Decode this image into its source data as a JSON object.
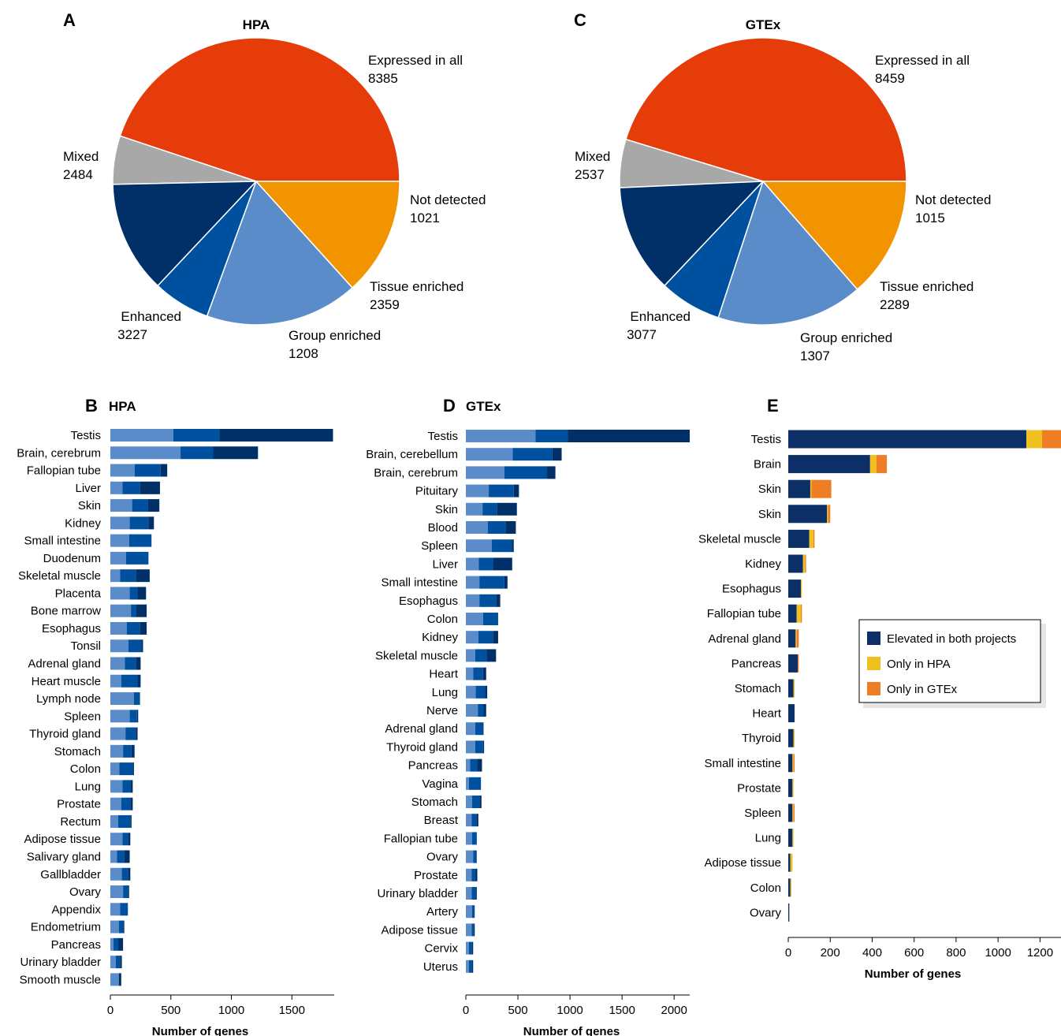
{
  "colors": {
    "expressed_in_all": "#e63c0a",
    "mixed": "#f29400",
    "not_detected": "#a8a8a8",
    "enhanced": "#5b8cca",
    "group_enriched": "#0050a0",
    "tissue_enriched": "#003067",
    "elevated_both": "#0b2f66",
    "only_hpa": "#f0c020",
    "only_gtex": "#ee7d23"
  },
  "chart_data": [
    {
      "panel": "A",
      "type": "pie",
      "title": "HPA",
      "slices": [
        {
          "name": "Expressed in all",
          "value": 8385
        },
        {
          "name": "Not detected",
          "value": 1021
        },
        {
          "name": "Tissue enriched",
          "value": 2359
        },
        {
          "name": "Group enriched",
          "value": 1208
        },
        {
          "name": "Enhanced",
          "value": 3227
        },
        {
          "name": "Mixed",
          "value": 2484
        }
      ]
    },
    {
      "panel": "C",
      "type": "pie",
      "title": "GTEx",
      "slices": [
        {
          "name": "Expressed in all",
          "value": 8459
        },
        {
          "name": "Not detected",
          "value": 1015
        },
        {
          "name": "Tissue enriched",
          "value": 2289
        },
        {
          "name": "Group enriched",
          "value": 1307
        },
        {
          "name": "Enhanced",
          "value": 3077
        },
        {
          "name": "Mixed",
          "value": 2537
        }
      ]
    },
    {
      "panel": "B",
      "type": "bar",
      "orientation": "horizontal",
      "stacked": true,
      "title": "HPA",
      "xlabel": "Number of genes",
      "xlim": [
        0,
        1850
      ],
      "xticks": [
        0,
        500,
        1000,
        1500
      ],
      "categories": [
        "Testis",
        "Brain, cerebrum",
        "Fallopian tube",
        "Liver",
        "Skin",
        "Kidney",
        "Small intestine",
        "Duodenum",
        "Skeletal muscle",
        "Placenta",
        "Bone marrow",
        "Esophagus",
        "Tonsil",
        "Adrenal gland",
        "Heart muscle",
        "Lymph node",
        "Spleen",
        "Thyroid gland",
        "Stomach",
        "Colon",
        "Lung",
        "Prostate",
        "Rectum",
        "Adipose tissue",
        "Salivary gland",
        "Gallbladder",
        "Ovary",
        "Appendix",
        "Endometrium",
        "Pancreas",
        "Urinary bladder",
        "Smooth muscle"
      ],
      "series": [
        {
          "values": [
            520,
            580,
            200,
            100,
            180,
            160,
            155,
            130,
            80,
            160,
            170,
            135,
            150,
            120,
            90,
            195,
            160,
            125,
            105,
            75,
            100,
            90,
            65,
            100,
            55,
            95,
            105,
            80,
            70,
            25,
            45,
            70
          ]
        },
        {
          "values": [
            380,
            270,
            215,
            145,
            130,
            155,
            185,
            185,
            130,
            65,
            45,
            110,
            105,
            90,
            135,
            50,
            60,
            85,
            70,
            110,
            65,
            75,
            100,
            45,
            60,
            50,
            40,
            65,
            35,
            40,
            35,
            0
          ]
        },
        {
          "values": [
            940,
            370,
            55,
            165,
            95,
            45,
            0,
            0,
            115,
            70,
            85,
            55,
            15,
            40,
            25,
            0,
            10,
            15,
            25,
            10,
            20,
            20,
            10,
            20,
            45,
            20,
            10,
            0,
            10,
            40,
            15,
            20
          ]
        }
      ]
    },
    {
      "panel": "D",
      "type": "bar",
      "orientation": "horizontal",
      "stacked": true,
      "title": "GTEx",
      "xlabel": "Number of genes",
      "xlim": [
        0,
        2150
      ],
      "xticks": [
        0,
        500,
        1000,
        1500,
        2000
      ],
      "categories": [
        "Testis",
        "Brain, cerebellum",
        "Brain, cerebrum",
        "Pituitary",
        "Skin",
        "Blood",
        "Spleen",
        "Liver",
        "Small intestine",
        "Esophagus",
        "Colon",
        "Kidney",
        "Skeletal muscle",
        "Heart",
        "Lung",
        "Nerve",
        "Adrenal gland",
        "Thyroid gland",
        "Pancreas",
        "Vagina",
        "Stomach",
        "Breast",
        "Fallopian tube",
        "Ovary",
        "Prostate",
        "Urinary bladder",
        "Artery",
        "Adipose tissue",
        "Cervix",
        "Uterus"
      ],
      "series": [
        {
          "values": [
            670,
            450,
            370,
            220,
            160,
            210,
            250,
            125,
            130,
            130,
            165,
            120,
            90,
            70,
            95,
            115,
            90,
            90,
            40,
            30,
            60,
            55,
            60,
            70,
            55,
            55,
            60,
            55,
            30,
            30
          ]
        },
        {
          "values": [
            310,
            380,
            410,
            240,
            140,
            170,
            190,
            140,
            240,
            160,
            145,
            140,
            110,
            95,
            90,
            55,
            70,
            75,
            70,
            115,
            70,
            45,
            45,
            30,
            35,
            40,
            20,
            20,
            30,
            30
          ]
        },
        {
          "values": [
            1170,
            90,
            80,
            50,
            190,
            100,
            20,
            180,
            30,
            40,
            0,
            50,
            90,
            30,
            20,
            25,
            10,
            10,
            45,
            0,
            20,
            20,
            0,
            5,
            20,
            10,
            5,
            10,
            10,
            10
          ]
        }
      ]
    },
    {
      "panel": "E",
      "type": "bar",
      "orientation": "horizontal",
      "stacked": true,
      "xlabel": "Number of genes",
      "xlim": [
        0,
        1300
      ],
      "xticks": [
        0,
        200,
        400,
        600,
        800,
        1000,
        1200
      ],
      "categories": [
        "Testis",
        "Brain",
        "Skin",
        "Skin",
        "Skeletal muscle",
        "Kidney",
        "Esophagus",
        "Fallopian tube",
        "Adrenal gland",
        "Pancreas",
        "Stomach",
        "Heart",
        "Thyroid",
        "Small intestine",
        "Prostate",
        "Spleen",
        "Lung",
        "Adipose tissue",
        "Colon",
        "Ovary"
      ],
      "series": [
        {
          "name": "Elevated in both projects",
          "values": [
            1135,
            390,
            105,
            185,
            100,
            70,
            60,
            40,
            35,
            45,
            25,
            30,
            25,
            20,
            20,
            20,
            20,
            10,
            10,
            5
          ]
        },
        {
          "name": "Only in HPA",
          "values": [
            75,
            30,
            5,
            5,
            20,
            10,
            5,
            20,
            5,
            0,
            5,
            0,
            5,
            5,
            5,
            5,
            5,
            10,
            5,
            0
          ]
        },
        {
          "name": "Only in GTEx",
          "values": [
            100,
            50,
            95,
            10,
            5,
            5,
            0,
            5,
            10,
            5,
            0,
            0,
            0,
            5,
            0,
            5,
            0,
            0,
            0,
            0
          ]
        }
      ],
      "legend_position": "right"
    }
  ],
  "panels": {
    "a": {
      "letter": "A",
      "title": "HPA"
    },
    "c": {
      "letter": "C",
      "title": "GTEx"
    },
    "b": {
      "letter": "B",
      "title": "HPA"
    },
    "d": {
      "letter": "D",
      "title": "GTEx"
    },
    "e": {
      "letter": "E",
      "title": ""
    }
  }
}
